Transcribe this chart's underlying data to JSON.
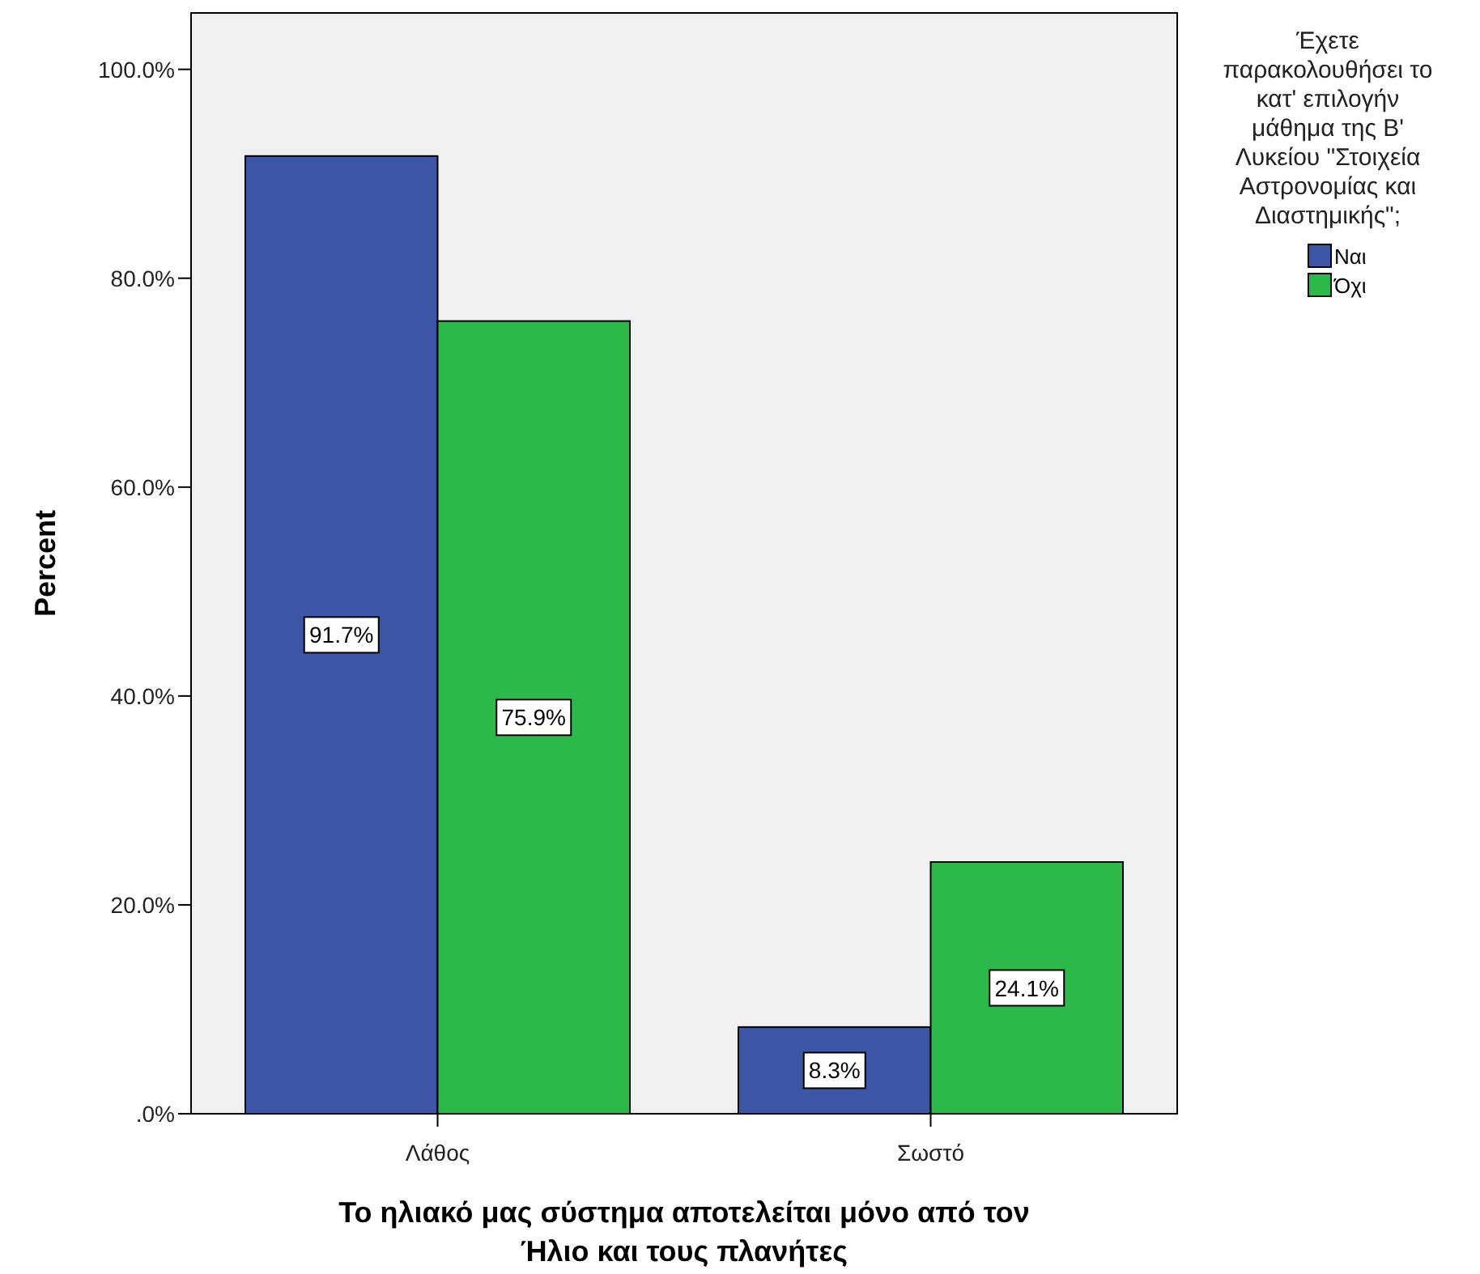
{
  "chart_data": {
    "type": "bar",
    "xlabel": "Το ηλιακό μας σύστημα αποτελείται μόνο από τον Ήλιο και τους πλανήτες",
    "ylabel": "Percent",
    "legend_title": "Έχετε παρακολουθήσει το κατ' επιλογήν μάθημα της Β' Λυκείου \"Στοιχεία Αστρονομίας και Διαστημικής\";",
    "categories": [
      "Λάθος",
      "Σωστό"
    ],
    "series": [
      {
        "name": "Ναι",
        "color": "#3c55a5",
        "values": [
          91.7,
          8.3
        ],
        "value_labels": [
          "91.7%",
          "8.3%"
        ]
      },
      {
        "name": "Όχι",
        "color": "#2db84a",
        "values": [
          75.9,
          24.1
        ],
        "value_labels": [
          "75.9%",
          "24.1%"
        ]
      }
    ],
    "ylim": [
      0,
      105.4
    ],
    "yticks": [
      {
        "value": 0,
        "label": ".0%"
      },
      {
        "value": 20,
        "label": "20.0%"
      },
      {
        "value": 40,
        "label": "40.0%"
      },
      {
        "value": 60,
        "label": "60.0%"
      },
      {
        "value": 80,
        "label": "80.0%"
      },
      {
        "value": 100,
        "label": "100.0%"
      }
    ],
    "grid": false,
    "legend": "top right"
  }
}
